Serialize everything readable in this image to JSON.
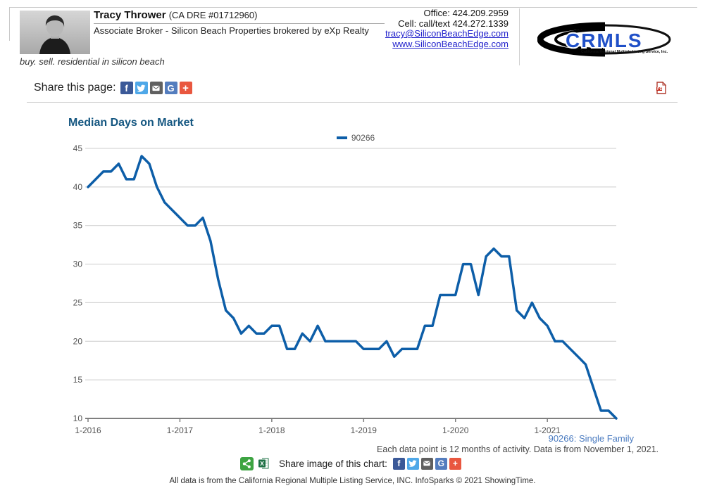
{
  "header": {
    "agent_name": "Tracy Thrower",
    "license": "(CA DRE #01712960)",
    "role_line": "Associate Broker - Silicon Beach Properties brokered by eXp Realty",
    "tagline": "buy. sell. residential in silicon beach",
    "office_label": "Office: 424.209.2959",
    "cell_label": "Cell: call/text 424.272.1339",
    "email": "tracy@SiliconBeachEdge.com",
    "website": "www.SiliconBeachEdge.com",
    "logo_text": "CRMLS",
    "logo_subtext": "California Regional Multiple Listing Service, Inc."
  },
  "share_bar": {
    "label": "Share this page:"
  },
  "icons": {
    "facebook_glyph": "f",
    "google_glyph": "G",
    "plus_glyph": "+",
    "facebook": "facebook-icon",
    "twitter": "twitter-bird-icon",
    "email": "envelope-icon",
    "google": "google-icon",
    "addthis": "plus-icon",
    "pdf": "pdf-file-icon",
    "share_green": "share-nodes-icon",
    "excel": "excel-file-icon"
  },
  "colors": {
    "line": "#0d5ea8",
    "title": "#155781",
    "grid": "#cccccc",
    "axis": "#7f7f7f",
    "tick_text": "#555555",
    "link": "#2222cc",
    "series_caption": "#4a7bc0"
  },
  "chart_data": {
    "type": "line",
    "title": "Median Days on Market",
    "legend_position": "top-center",
    "grid": "horizontal",
    "ylim": [
      10,
      45
    ],
    "yticks": [
      10,
      15,
      20,
      25,
      30,
      35,
      40,
      45
    ],
    "x_tick_labels": [
      "1-2016",
      "1-2017",
      "1-2018",
      "1-2019",
      "1-2020",
      "1-2021"
    ],
    "x_start": "2016-01",
    "x_end": "2021-10",
    "months_per_point": 1,
    "series": [
      {
        "name": "90266",
        "color": "#0d5ea8",
        "values": [
          40,
          41,
          42,
          42,
          43,
          41,
          41,
          44,
          43,
          40,
          38,
          37,
          36,
          35,
          35,
          36,
          33,
          28,
          24,
          23,
          21,
          22,
          21,
          21,
          22,
          22,
          19,
          19,
          21,
          20,
          22,
          20,
          20,
          20,
          20,
          20,
          19,
          19,
          19,
          20,
          18,
          19,
          19,
          19,
          22,
          22,
          26,
          26,
          26,
          30,
          30,
          26,
          31,
          32,
          31,
          31,
          24,
          23,
          25,
          23,
          22,
          20,
          20,
          19,
          18,
          17,
          14,
          11,
          11,
          10
        ]
      }
    ]
  },
  "chart_footer": {
    "series_caption": "90266: Single Family",
    "note": "Each data point is 12 months of activity. Data is from November 1, 2021.",
    "share_image_label": "Share image of this chart:"
  },
  "footer": {
    "disclaimer": "All data is from the California Regional Multiple Listing Service, INC. InfoSparks © 2021 ShowingTime."
  }
}
